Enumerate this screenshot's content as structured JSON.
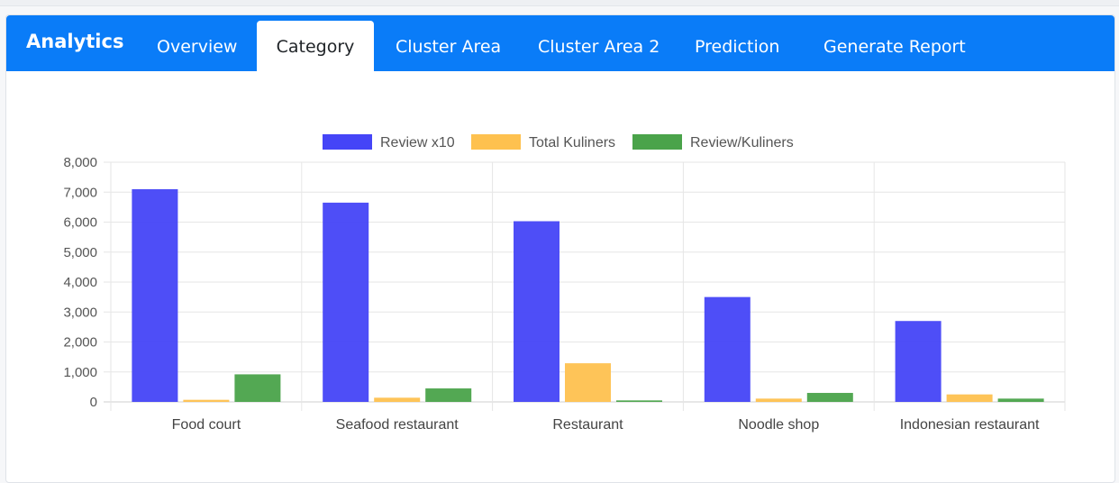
{
  "app": {
    "brand": "Analytics"
  },
  "tabs": [
    {
      "label": "Overview",
      "active": false
    },
    {
      "label": "Category",
      "active": true
    },
    {
      "label": "Cluster Area",
      "active": false
    },
    {
      "label": "Cluster Area 2",
      "active": false
    },
    {
      "label": "Prediction",
      "active": false
    },
    {
      "label": "Generate Report",
      "active": false
    }
  ],
  "colors": {
    "navbar": "#0a7cf8",
    "review": "#4545f7",
    "total": "#fec14f",
    "ratio": "#4aa34a"
  },
  "chart_data": {
    "type": "bar",
    "title": "",
    "xlabel": "",
    "ylabel": "",
    "ylim": [
      0,
      8000
    ],
    "grid": true,
    "legend_position": "top",
    "y_ticks": [
      "0",
      "1,000",
      "2,000",
      "3,000",
      "4,000",
      "5,000",
      "6,000",
      "7,000",
      "8,000"
    ],
    "categories": [
      "Food court",
      "Seafood restaurant",
      "Restaurant",
      "Noodle shop",
      "Indonesian restaurant"
    ],
    "series": [
      {
        "name": "Review x10",
        "color": "#4545f7",
        "values": [
          7100,
          6650,
          6030,
          3500,
          2700
        ]
      },
      {
        "name": "Total Kuliners",
        "color": "#fec14f",
        "values": [
          70,
          140,
          1290,
          110,
          250
        ]
      },
      {
        "name": "Review/Kuliners",
        "color": "#4aa34a",
        "values": [
          920,
          450,
          50,
          300,
          110
        ]
      }
    ]
  }
}
